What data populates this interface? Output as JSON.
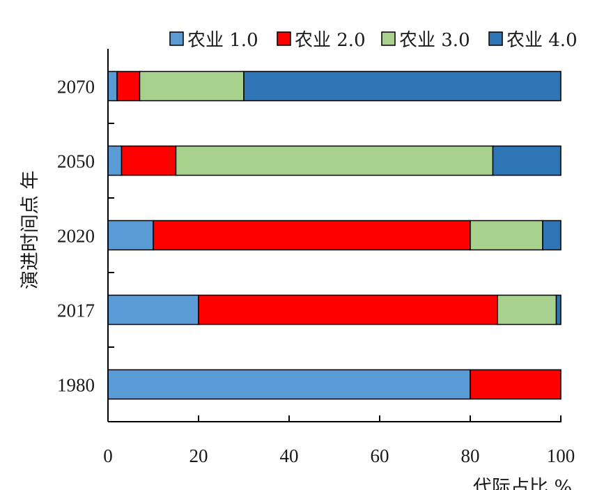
{
  "chart_data": {
    "type": "bar",
    "orientation": "horizontal",
    "stacked": true,
    "categories": [
      "2070",
      "2050",
      "2020",
      "2017",
      "1980"
    ],
    "series": [
      {
        "name": "农业 1.0",
        "color": "#5b9bd5",
        "values": [
          2,
          3,
          10,
          20,
          80
        ]
      },
      {
        "name": "农业 2.0",
        "color": "#ff0000",
        "values": [
          5,
          12,
          70,
          66,
          20
        ]
      },
      {
        "name": "农业 3.0",
        "color": "#a9d18e",
        "values": [
          23,
          70,
          16,
          13,
          0
        ]
      },
      {
        "name": "农业 4.0",
        "color": "#2e75b6",
        "values": [
          70,
          15,
          4,
          1,
          0
        ]
      }
    ],
    "xlabel": "代际占比 %",
    "ylabel": "演进时间点 年",
    "xlim": [
      0,
      100
    ],
    "xticks": [
      "0",
      "20",
      "40",
      "60",
      "80",
      "100"
    ],
    "grid": false,
    "legend_position": "top"
  }
}
